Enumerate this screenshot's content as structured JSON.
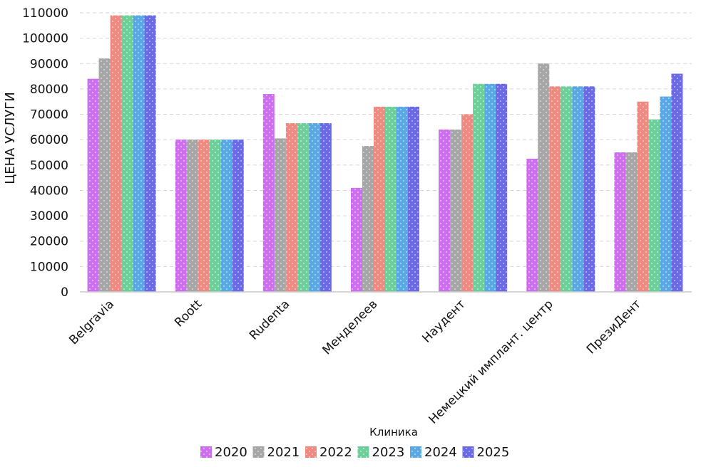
{
  "chart_data": {
    "type": "bar",
    "xlabel": "Клиника",
    "ylabel": "ЦЕНА УСЛУГИ",
    "ylim": [
      0,
      110000
    ],
    "yticks": [
      0,
      10000,
      20000,
      30000,
      40000,
      50000,
      60000,
      70000,
      80000,
      90000,
      100000,
      110000
    ],
    "grid": true,
    "legend_position": "bottom",
    "categories": [
      "Belgravia",
      "Roott",
      "Rudenta",
      "Менделеев",
      "Наудент",
      "Немецкий имплант. центр",
      "ПрезиДент"
    ],
    "series": [
      {
        "name": "2020",
        "color": "#cc6ef0",
        "values": [
          84000,
          60000,
          78000,
          41000,
          64000,
          52500,
          55000
        ]
      },
      {
        "name": "2021",
        "color": "#a6a6a6",
        "values": [
          92000,
          60000,
          60500,
          57500,
          64000,
          90000,
          55000
        ]
      },
      {
        "name": "2022",
        "color": "#f08a80",
        "values": [
          109000,
          60000,
          66500,
          73000,
          70000,
          81000,
          75000
        ]
      },
      {
        "name": "2023",
        "color": "#6ccf99",
        "values": [
          109000,
          60000,
          66500,
          73000,
          82000,
          81000,
          68000
        ]
      },
      {
        "name": "2024",
        "color": "#58a8e6",
        "values": [
          109000,
          60000,
          66500,
          73000,
          82000,
          81000,
          77000
        ]
      },
      {
        "name": "2025",
        "color": "#6a6ae8",
        "values": [
          109000,
          60000,
          66500,
          73000,
          82000,
          81000,
          86000
        ]
      }
    ]
  }
}
